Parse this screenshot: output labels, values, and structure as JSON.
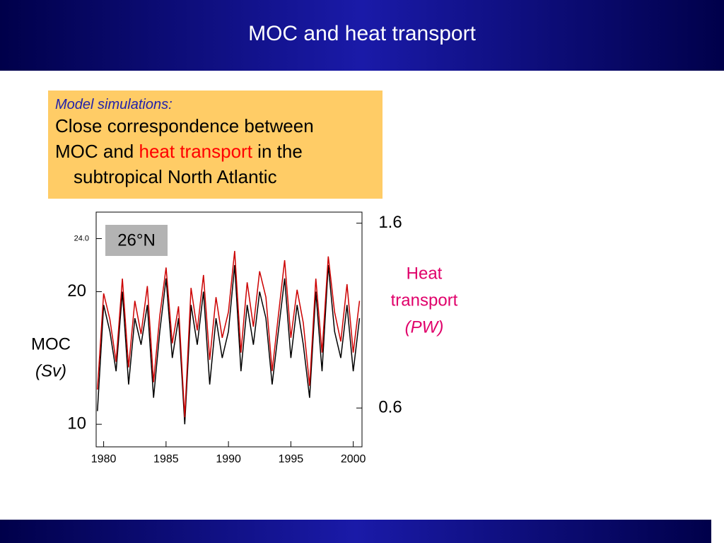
{
  "slide": {
    "title": "MOC and heat transport",
    "box": {
      "heading": "Model simulations:",
      "line1": "Close correspondence between",
      "line2a": "MOC and",
      "line2b": "heat transport",
      "line2c": "in the",
      "line3": "subtropical North Atlantic"
    }
  },
  "chart_data": {
    "type": "line",
    "annotation": "26°N",
    "ylabel": [
      "MOC",
      "(Sv)"
    ],
    "y2label": [
      "Heat",
      "transport",
      "(PW)"
    ],
    "x": [
      1979.5,
      1980,
      1980.5,
      1981,
      1981.5,
      1982,
      1982.5,
      1983,
      1983.5,
      1984,
      1984.5,
      1985,
      1985.5,
      1986,
      1986.5,
      1987,
      1987.5,
      1988,
      1988.5,
      1989,
      1989.5,
      1990,
      1990.5,
      1991,
      1991.5,
      1992,
      1992.5,
      1993,
      1993.5,
      1994,
      1994.5,
      1995,
      1995.5,
      1996,
      1996.5,
      1997,
      1997.5,
      1998,
      1998.5,
      1999,
      1999.5,
      2000,
      2000.5
    ],
    "xlim": [
      1979.4,
      2000.7
    ],
    "xticks": [
      1980,
      1985,
      1990,
      1995,
      2000
    ],
    "ylim": [
      8.3,
      26
    ],
    "yticks": [
      10,
      20,
      {
        "value": 24,
        "label": "24.0"
      }
    ],
    "y2lim": [
      0.39,
      1.66
    ],
    "y2ticks": [
      0.6,
      1.6
    ],
    "series": [
      {
        "name": "MOC",
        "color": "#000000",
        "axis": "y",
        "values": [
          11,
          19,
          17,
          14,
          20,
          13,
          18,
          16,
          19,
          12,
          17,
          21,
          15,
          18,
          10,
          19,
          16,
          20,
          13,
          18,
          15,
          17,
          22,
          14,
          19,
          16,
          20,
          18,
          13,
          17,
          21,
          15,
          19,
          16,
          12,
          20,
          14,
          22,
          17,
          15,
          19,
          14,
          18
        ]
      },
      {
        "name": "Heat transport",
        "color": "#cc0000",
        "axis": "y2",
        "values": [
          0.7,
          1.22,
          1.08,
          0.85,
          1.3,
          0.82,
          1.18,
          1.0,
          1.26,
          0.74,
          1.1,
          1.36,
          0.95,
          1.15,
          0.55,
          1.25,
          1.02,
          1.32,
          0.86,
          1.2,
          0.98,
          1.12,
          1.45,
          0.9,
          1.28,
          1.04,
          1.34,
          1.2,
          0.8,
          1.1,
          1.4,
          0.98,
          1.24,
          1.06,
          0.72,
          1.3,
          0.9,
          1.42,
          1.12,
          0.96,
          1.27,
          0.9,
          1.18
        ]
      }
    ]
  }
}
